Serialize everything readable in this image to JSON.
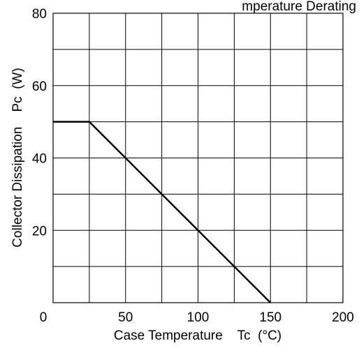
{
  "chart_data": {
    "type": "line",
    "title": "mperature Derating",
    "xlabel": "Case Temperature    Tc  (°C)",
    "ylabel": "Collector Dissipation    Pc  (W)",
    "xlim": [
      0,
      200
    ],
    "ylim": [
      0,
      80
    ],
    "xticks": [
      0,
      50,
      100,
      150,
      200
    ],
    "yticks": [
      20,
      40,
      60,
      80
    ],
    "x_grid_step": 25,
    "y_grid_step": 10,
    "grid": true,
    "series": [
      {
        "x": [
          0,
          25,
          150
        ],
        "y": [
          50,
          50,
          0
        ]
      }
    ]
  }
}
